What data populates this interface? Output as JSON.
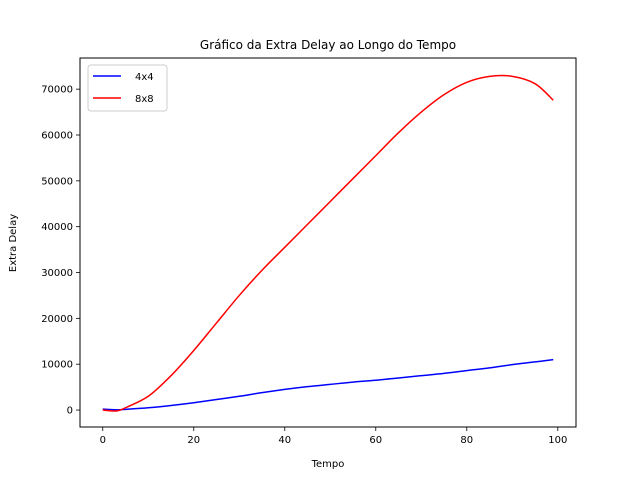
{
  "chart_data": {
    "type": "line",
    "title": "Gráfico da Extra Delay ao Longo do Tempo",
    "xlabel": "Tempo",
    "ylabel": "Extra Delay",
    "xlim": [
      -5,
      104
    ],
    "ylim": [
      -3700,
      76800
    ],
    "xticks": [
      0,
      20,
      40,
      60,
      80,
      100
    ],
    "yticks": [
      0,
      10000,
      20000,
      30000,
      40000,
      50000,
      60000,
      70000
    ],
    "grid": false,
    "legend": "top-left",
    "x": [
      0,
      3,
      5,
      10,
      15,
      20,
      25,
      30,
      35,
      40,
      45,
      50,
      55,
      60,
      65,
      70,
      75,
      80,
      85,
      90,
      95,
      99
    ],
    "series": [
      {
        "name": "4x4",
        "color": "#0000ff",
        "values": [
          200,
          50,
          150,
          500,
          1000,
          1600,
          2300,
          3000,
          3800,
          4500,
          5100,
          5600,
          6100,
          6500,
          7000,
          7500,
          8000,
          8600,
          9200,
          9900,
          10500,
          11000
        ]
      },
      {
        "name": "8x8",
        "color": "#ff0000",
        "values": [
          0,
          -200,
          500,
          3000,
          7500,
          13000,
          19000,
          25000,
          30500,
          35500,
          40500,
          45500,
          50500,
          55500,
          60500,
          65000,
          68800,
          71500,
          72800,
          72800,
          71200,
          67600
        ]
      }
    ]
  }
}
